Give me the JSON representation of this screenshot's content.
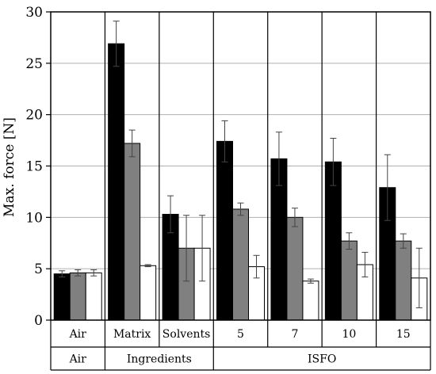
{
  "chart_data": {
    "type": "bar",
    "ylabel": "Max. force [N]",
    "ylim": [
      0,
      30
    ],
    "yticks": [
      0,
      5,
      10,
      15,
      20,
      25,
      30
    ],
    "grid": true,
    "categories": [
      "Air",
      "Matrix",
      "Solvents",
      "5",
      "7",
      "10",
      "15"
    ],
    "groups": [
      {
        "label": "Air",
        "span": 1
      },
      {
        "label": "Ingredients",
        "span": 2
      },
      {
        "label": "ISFO",
        "span": 4
      }
    ],
    "series": [
      {
        "color": "#000000",
        "values": [
          4.5,
          26.9,
          10.3,
          17.4,
          15.7,
          15.4,
          12.9
        ],
        "errors": [
          0.3,
          2.2,
          1.8,
          2.0,
          2.6,
          2.3,
          3.2
        ]
      },
      {
        "color": "#808080",
        "values": [
          4.6,
          17.2,
          7.0,
          10.8,
          10.0,
          7.7,
          7.7
        ],
        "errors": [
          0.3,
          1.3,
          3.2,
          0.6,
          0.9,
          0.8,
          0.7
        ]
      },
      {
        "color": "#ffffff",
        "values": [
          4.6,
          5.3,
          7.0,
          5.2,
          3.8,
          5.4,
          4.1
        ],
        "errors": [
          0.3,
          0.1,
          3.2,
          1.1,
          0.2,
          1.2,
          2.9
        ]
      }
    ]
  }
}
